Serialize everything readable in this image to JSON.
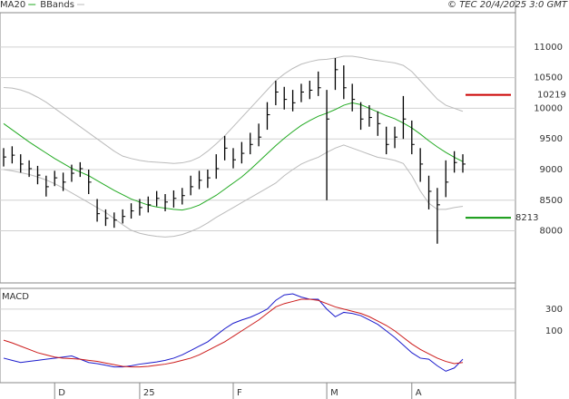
{
  "chart_data": [
    {
      "type": "ohlc",
      "copyright": "© TEC 20/4/2025 3:0 GMT",
      "bar_color": "#000000",
      "categories": [
        null,
        null,
        null,
        null,
        null,
        null,
        "D",
        null,
        null,
        null,
        null,
        null,
        null,
        null,
        null,
        null,
        "25",
        null,
        null,
        null,
        null,
        null,
        null,
        null,
        null,
        null,
        null,
        "F",
        null,
        null,
        null,
        null,
        null,
        null,
        null,
        null,
        null,
        null,
        "M",
        null,
        null,
        null,
        null,
        null,
        null,
        null,
        null,
        null,
        "A",
        null,
        null,
        null,
        null,
        null,
        null
      ],
      "high": [
        9350,
        9380,
        9250,
        9150,
        9060,
        8900,
        8980,
        8950,
        9080,
        9120,
        9000,
        8520,
        8350,
        8300,
        8350,
        8450,
        8520,
        8560,
        8650,
        8600,
        8660,
        8700,
        8900,
        8980,
        9000,
        9250,
        9550,
        9350,
        9450,
        9600,
        9750,
        10100,
        10450,
        10350,
        10300,
        10400,
        10450,
        10600,
        10300,
        10820,
        10700,
        10400,
        10100,
        10050,
        9950,
        9700,
        9700,
        10200,
        9800,
        9350,
        8900,
        8700,
        9150,
        9300,
        9250
      ],
      "low": [
        9050,
        9100,
        8950,
        8880,
        8760,
        8560,
        8730,
        8650,
        8800,
        8880,
        8600,
        8150,
        8080,
        8050,
        8120,
        8200,
        8250,
        8300,
        8400,
        8320,
        8380,
        8430,
        8580,
        8680,
        8700,
        8850,
        9150,
        9020,
        9100,
        9250,
        9380,
        9650,
        10050,
        9980,
        9950,
        10100,
        10150,
        10200,
        8500,
        10300,
        10150,
        9950,
        9650,
        9700,
        9550,
        9250,
        9350,
        9500,
        9250,
        8800,
        8350,
        7790,
        8550,
        8950,
        8950
      ],
      "close": [
        9205,
        9235,
        9090,
        9015,
        8910,
        8720,
        8865,
        8795,
        8940,
        9015,
        8795,
        8280,
        8205,
        8175,
        8235,
        8325,
        8380,
        8425,
        8530,
        8470,
        8530,
        8575,
        8720,
        8825,
        8865,
        9015,
        9350,
        9160,
        9265,
        9410,
        9530,
        9895,
        10265,
        10145,
        10090,
        10265,
        10295,
        10335,
        9825,
        10630,
        10335,
        10145,
        9825,
        9850,
        9750,
        9410,
        9530,
        9825,
        9410,
        9090,
        8645,
        8425,
        8795,
        9115,
        9090
      ],
      "series": [
        {
          "name": "MA20",
          "color": "#22aa22",
          "values": [
            9750,
            9650,
            9550,
            9450,
            9360,
            9270,
            9180,
            9100,
            9020,
            8960,
            8900,
            8820,
            8740,
            8660,
            8590,
            8520,
            8470,
            8420,
            8390,
            8370,
            8350,
            8340,
            8370,
            8420,
            8500,
            8580,
            8680,
            8780,
            8880,
            9000,
            9130,
            9260,
            9390,
            9510,
            9620,
            9720,
            9800,
            9870,
            9920,
            9980,
            10050,
            10090,
            10060,
            10000,
            9940,
            9880,
            9830,
            9760,
            9680,
            9580,
            9470,
            9370,
            9280,
            9200,
            9130
          ]
        },
        {
          "name": "BBands",
          "color": "#bbbbbb",
          "upper": [
            10340,
            10330,
            10300,
            10250,
            10180,
            10100,
            10000,
            9900,
            9800,
            9700,
            9600,
            9500,
            9400,
            9300,
            9220,
            9180,
            9150,
            9130,
            9120,
            9110,
            9100,
            9110,
            9140,
            9200,
            9300,
            9420,
            9550,
            9700,
            9850,
            10000,
            10150,
            10300,
            10450,
            10560,
            10650,
            10720,
            10760,
            10790,
            10800,
            10820,
            10850,
            10850,
            10830,
            10800,
            10780,
            10760,
            10740,
            10700,
            10600,
            10450,
            10300,
            10150,
            10050,
            10000,
            9950
          ],
          "lower": [
            9000,
            8980,
            8950,
            8920,
            8880,
            8830,
            8770,
            8700,
            8620,
            8540,
            8460,
            8380,
            8300,
            8200,
            8100,
            8010,
            7960,
            7930,
            7910,
            7900,
            7910,
            7940,
            7990,
            8050,
            8130,
            8220,
            8300,
            8380,
            8460,
            8540,
            8620,
            8700,
            8780,
            8900,
            9000,
            9090,
            9150,
            9200,
            9280,
            9350,
            9400,
            9350,
            9300,
            9250,
            9200,
            9180,
            9150,
            9100,
            8900,
            8650,
            8450,
            8350,
            8350,
            8380,
            8400
          ]
        }
      ],
      "levels": [
        {
          "value": 10219,
          "color": "#cc0000"
        },
        {
          "value": 8213,
          "color": "#119911"
        }
      ],
      "ylim": [
        7150,
        11560
      ],
      "yticks": [
        8000,
        8500,
        9000,
        9500,
        10000,
        10500,
        11000
      ],
      "grid": true
    },
    {
      "type": "macd",
      "title": "MACD",
      "series": [
        {
          "color": "#1a1acc",
          "values": [
            -150,
            -170,
            -190,
            -180,
            -170,
            -160,
            -150,
            -140,
            -130,
            -160,
            -190,
            -200,
            -215,
            -230,
            -230,
            -220,
            -205,
            -195,
            -185,
            -170,
            -150,
            -120,
            -80,
            -40,
            0,
            60,
            120,
            170,
            200,
            225,
            260,
            300,
            380,
            430,
            440,
            410,
            390,
            390,
            300,
            230,
            270,
            260,
            240,
            200,
            160,
            100,
            40,
            -30,
            -100,
            -150,
            -160,
            -220,
            -270,
            -240,
            -160
          ]
        },
        {
          "color": "#cc1a1a",
          "values": [
            15,
            -10,
            -40,
            -70,
            -100,
            -120,
            -140,
            -150,
            -155,
            -160,
            -170,
            -180,
            -195,
            -210,
            -225,
            -230,
            -230,
            -225,
            -215,
            -205,
            -190,
            -170,
            -150,
            -120,
            -80,
            -40,
            0,
            50,
            100,
            150,
            200,
            260,
            320,
            350,
            370,
            390,
            390,
            380,
            350,
            320,
            300,
            280,
            260,
            230,
            190,
            150,
            100,
            40,
            -20,
            -70,
            -110,
            -150,
            -180,
            -200,
            -190
          ]
        }
      ],
      "ylim": [
        -375,
        490
      ],
      "yticks": [
        100,
        300
      ],
      "grid": true
    }
  ]
}
